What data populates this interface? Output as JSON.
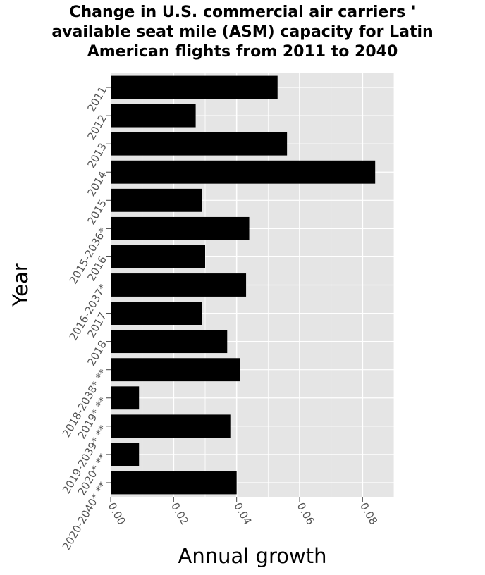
{
  "chart_data": {
    "type": "bar",
    "orientation": "horizontal",
    "title": "Change in U.S. commercial air carriers '\navailable seat mile (ASM) capacity for Latin\nAmerican flights from 2011 to 2040",
    "xlabel": "Annual growth",
    "ylabel": "Year",
    "categories": [
      "2011",
      "2012",
      "2013",
      "2014",
      "2015",
      "2015-2036*",
      "2016",
      "2016-2037*",
      "2017",
      "2018",
      "2018-2038* **",
      "2019* **",
      "2019-2039* **",
      "2020* **",
      "2020-2040* **"
    ],
    "values": [
      0.053,
      0.027,
      0.056,
      0.084,
      0.029,
      0.044,
      0.03,
      0.043,
      0.029,
      0.037,
      0.041,
      0.009,
      0.038,
      0.009,
      0.04
    ],
    "xticks": [
      "0.00",
      "0.02",
      "0.04",
      "0.06",
      "0.08"
    ],
    "xlim": [
      0,
      0.09
    ],
    "grid": true,
    "bar_color": "#000000",
    "background_color": "#e5e5e5"
  }
}
